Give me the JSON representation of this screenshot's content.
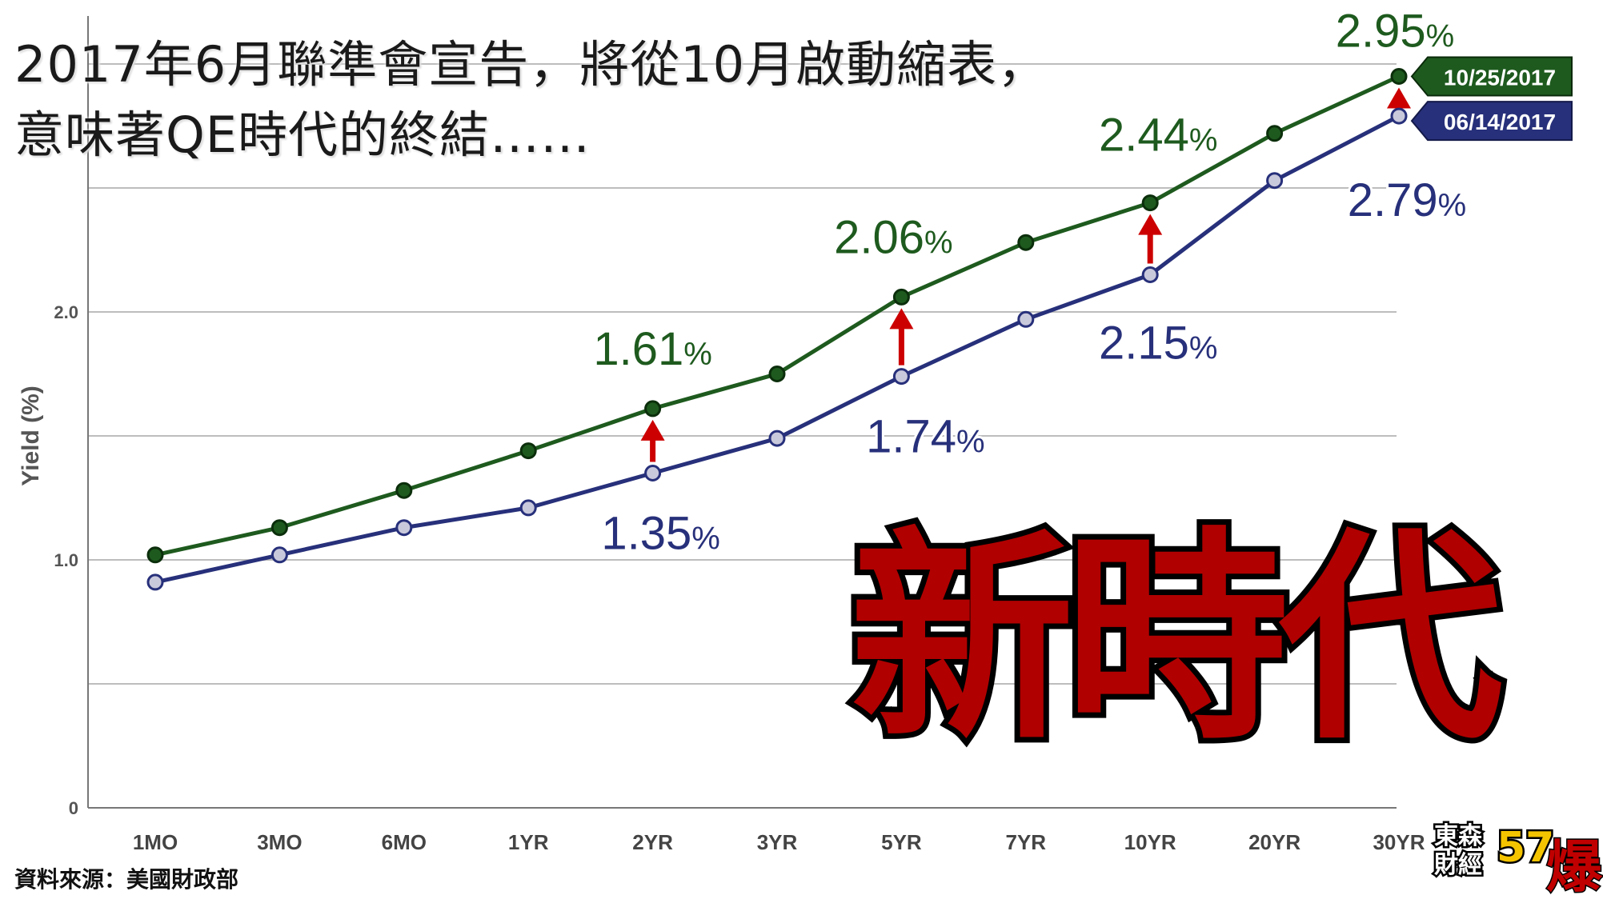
{
  "title": {
    "line1": "2017年6月聯準會宣告，將從10月啟動縮表，",
    "line2": "意味著QE時代的終結……"
  },
  "source": "資料來源：美國財政部",
  "big_text": "新時代",
  "logo": {
    "line1": "東森",
    "line2": "財經",
    "number": "57",
    "burst": "爆"
  },
  "colors": {
    "series_new": "#1e5a1e",
    "series_old": "#27307a",
    "arrow": "#cc0000",
    "grid": "#bdbdbd",
    "axis_text": "#555555"
  },
  "chart_data": {
    "type": "line",
    "ylabel": "Yield (%)",
    "ylim": [
      0,
      3.0
    ],
    "yticks": [
      0,
      1.0,
      2.0
    ],
    "ytick_labels": [
      "0",
      "1.0",
      "2.0"
    ],
    "grid": true,
    "categories": [
      "1MO",
      "3MO",
      "6MO",
      "1YR",
      "2YR",
      "3YR",
      "5YR",
      "7YR",
      "10YR",
      "20YR",
      "30YR"
    ],
    "series": [
      {
        "name": "10/25/2017",
        "values": [
          1.02,
          1.13,
          1.28,
          1.44,
          1.61,
          1.75,
          2.06,
          2.28,
          2.44,
          2.72,
          2.95
        ]
      },
      {
        "name": "06/14/2017",
        "values": [
          0.91,
          1.02,
          1.13,
          1.21,
          1.35,
          1.49,
          1.74,
          1.97,
          2.15,
          2.53,
          2.79
        ]
      }
    ],
    "annotations": [
      {
        "series": 0,
        "index": 4,
        "label": "1.61",
        "unit": "%"
      },
      {
        "series": 0,
        "index": 6,
        "label": "2.06",
        "unit": "%"
      },
      {
        "series": 0,
        "index": 8,
        "label": "2.44",
        "unit": "%"
      },
      {
        "series": 0,
        "index": 10,
        "label": "2.95",
        "unit": "%"
      },
      {
        "series": 1,
        "index": 4,
        "label": "1.35",
        "unit": "%"
      },
      {
        "series": 1,
        "index": 6,
        "label": "1.74",
        "unit": "%"
      },
      {
        "series": 1,
        "index": 8,
        "label": "2.15",
        "unit": "%"
      },
      {
        "series": 1,
        "index": 10,
        "label": "2.79",
        "unit": "%"
      }
    ],
    "arrows_at": [
      4,
      6,
      8,
      10
    ],
    "legend_placement": "right"
  }
}
